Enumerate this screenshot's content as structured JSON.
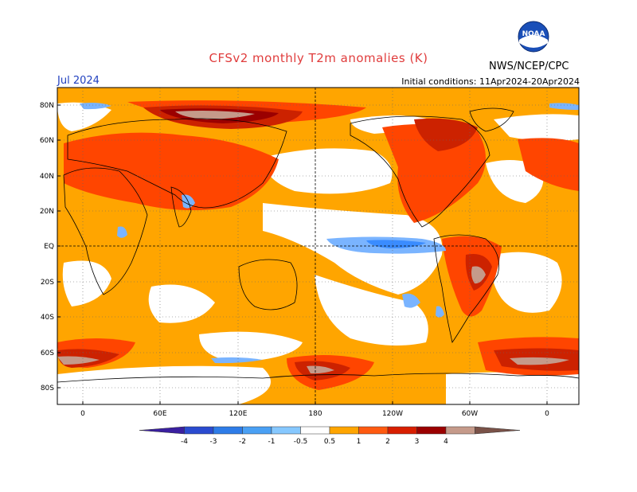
{
  "header": {
    "title": "CFSv2 monthly T2m anomalies (K)",
    "agency": "NWS/NCEP/CPC",
    "logo_text": "NOAA",
    "month": "Jul 2024",
    "initial_conditions": "Initial conditions: 11Apr2024-20Apr2024"
  },
  "map_data": {
    "lat_ticks": [
      "80N",
      "60N",
      "40N",
      "20N",
      "EQ",
      "20S",
      "40S",
      "60S",
      "80S"
    ],
    "lon_ticks": [
      "0",
      "60E",
      "120E",
      "180",
      "120W",
      "60W",
      "0"
    ],
    "colors": {
      "ocean_base": "#ffffff",
      "c_m05_0": "#ffffff",
      "c_05_1": "#ffa500",
      "c_1_2": "#ff4500",
      "c_2_3": "#cc2200",
      "c_3_4": "#9b0000",
      "c_4_up": "#c59a8a",
      "cool_1": "#7ab4ff",
      "cool_2": "#3a8cff",
      "grid": "#444444",
      "coast": "#000000"
    }
  },
  "colorbar": {
    "labels": [
      "-4",
      "-3",
      "-2",
      "-1",
      "-0.5",
      "0.5",
      "1",
      "2",
      "3",
      "4"
    ],
    "colors": [
      "#3a1fa0",
      "#2a4bd0",
      "#2e7ce8",
      "#4aa0f4",
      "#86c8ff",
      "#ffffff",
      "#ffa500",
      "#ff5a10",
      "#d81e00",
      "#9b0000",
      "#c59a8a",
      "#7a5248"
    ]
  }
}
